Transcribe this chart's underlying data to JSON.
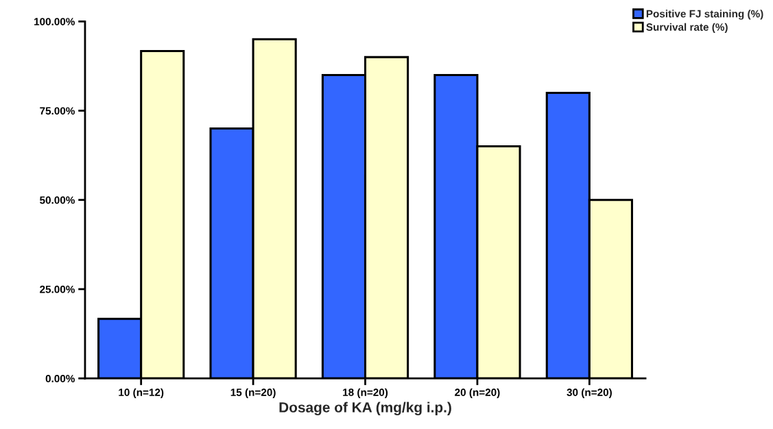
{
  "chart_data": {
    "type": "bar",
    "xlabel": "Dosage of KA (mg/kg i.p.)",
    "categories": [
      "10 (n=12)",
      "15 (n=20)",
      "18 (n=20)",
      "20 (n=20)",
      "30 (n=20)"
    ],
    "series": [
      {
        "name": "Positive FJ staining (%)",
        "color": "#3366ff",
        "values": [
          16.7,
          70,
          85,
          85,
          80
        ]
      },
      {
        "name": "Survival rate (%)",
        "color": "#ffffcc",
        "values": [
          91.7,
          95,
          90,
          65,
          50
        ]
      }
    ],
    "ylim": [
      0,
      100
    ],
    "yticks": [
      {
        "value": 0,
        "label": "0.00%"
      },
      {
        "value": 25,
        "label": "25.00%"
      },
      {
        "value": 50,
        "label": "50.00%"
      },
      {
        "value": 75,
        "label": "75.00%"
      },
      {
        "value": 100,
        "label": "100.00%"
      }
    ],
    "grid": false,
    "legend": "top right"
  }
}
